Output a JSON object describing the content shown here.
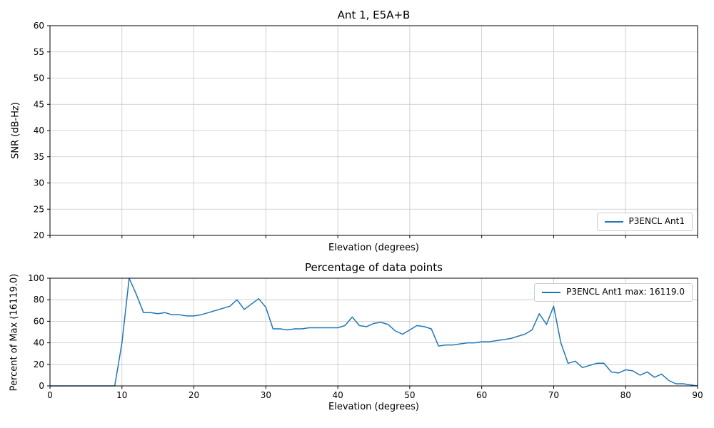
{
  "figure": {
    "background": "#ffffff",
    "accent_color": "#1f77b4",
    "grid_color": "#c6c6c6",
    "spine_color": "#000000"
  },
  "chart_data": [
    {
      "type": "line",
      "title": "Ant 1, E5A+B",
      "xlabel": "Elevation (degrees)",
      "ylabel": "SNR (dB-Hz)",
      "xlim": [
        0,
        90
      ],
      "ylim": [
        20,
        60
      ],
      "xticks": [
        0,
        10,
        20,
        30,
        40,
        50,
        60,
        70,
        80,
        90
      ],
      "x_tick_labels_shown": false,
      "yticks": [
        20,
        25,
        30,
        35,
        40,
        45,
        50,
        55,
        60
      ],
      "grid": true,
      "legend": {
        "position": "lower right",
        "entries": [
          {
            "label": "P3ENCL Ant1",
            "color": "#1f77b4"
          }
        ]
      },
      "series": [
        {
          "name": "P3ENCL Ant1",
          "color": "#1f77b4",
          "x": [],
          "y": []
        }
      ]
    },
    {
      "type": "line",
      "title": "Percentage of data points",
      "xlabel": "Elevation (degrees)",
      "ylabel": "Percent of Max (16119.0)",
      "max_value": "16119.0",
      "xlim": [
        0,
        90
      ],
      "ylim": [
        0,
        100
      ],
      "xticks": [
        0,
        10,
        20,
        30,
        40,
        50,
        60,
        70,
        80,
        90
      ],
      "x_tick_labels_shown": true,
      "yticks": [
        0,
        20,
        40,
        60,
        80,
        100
      ],
      "grid": true,
      "legend": {
        "position": "upper right",
        "entries": [
          {
            "label": "P3ENCL Ant1 max: 16119.0",
            "color": "#1f77b4"
          }
        ]
      },
      "series": [
        {
          "name": "P3ENCL Ant1",
          "color": "#1f77b4",
          "x": [
            0,
            1,
            2,
            3,
            4,
            5,
            6,
            7,
            8,
            9,
            10,
            11,
            12,
            13,
            14,
            15,
            16,
            17,
            18,
            19,
            20,
            21,
            22,
            23,
            24,
            25,
            26,
            27,
            28,
            29,
            30,
            31,
            32,
            33,
            34,
            35,
            36,
            37,
            38,
            39,
            40,
            41,
            42,
            43,
            44,
            45,
            46,
            47,
            48,
            49,
            50,
            51,
            52,
            53,
            54,
            55,
            56,
            57,
            58,
            59,
            60,
            61,
            62,
            63,
            64,
            65,
            66,
            67,
            68,
            69,
            70,
            71,
            72,
            73,
            74,
            75,
            76,
            77,
            78,
            79,
            80,
            81,
            82,
            83,
            84,
            85,
            86,
            87,
            88,
            89,
            90
          ],
          "y": [
            0,
            0,
            0,
            0,
            0,
            0,
            0,
            0,
            0,
            0,
            40,
            100,
            85,
            68,
            68,
            67,
            68,
            66,
            66,
            65,
            65,
            66,
            68,
            70,
            72,
            74,
            80,
            71,
            76,
            81,
            73,
            53,
            53,
            52,
            53,
            53,
            54,
            54,
            54,
            54,
            54,
            56,
            64,
            56,
            55,
            58,
            59,
            57,
            51,
            48,
            52,
            56,
            55,
            53,
            37,
            38,
            38,
            39,
            40,
            40,
            41,
            41,
            42,
            43,
            44,
            46,
            48,
            52,
            67,
            57,
            74,
            40,
            21,
            23,
            17,
            19,
            21,
            21,
            13,
            12,
            15,
            14,
            10,
            13,
            8,
            11,
            5,
            2,
            2,
            1,
            0
          ]
        }
      ]
    }
  ]
}
